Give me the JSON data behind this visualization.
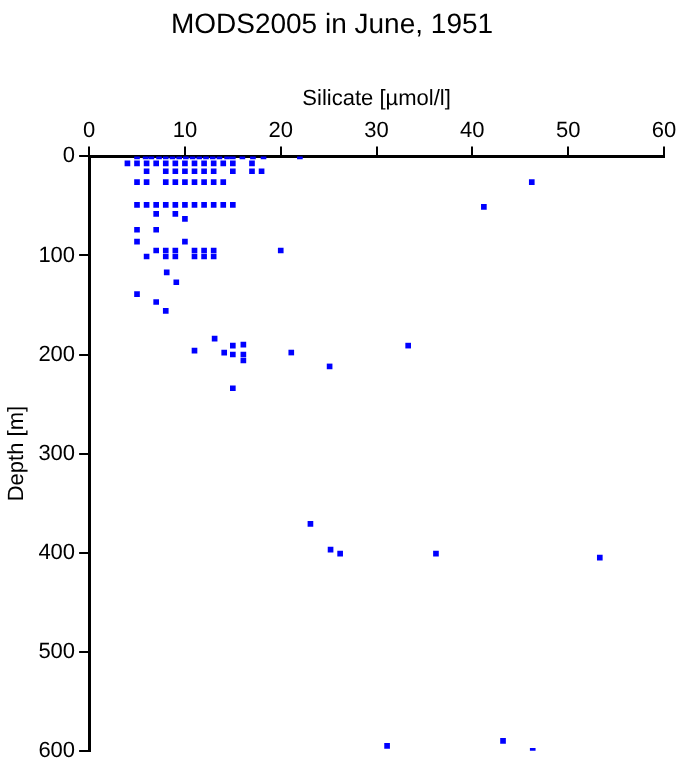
{
  "chart_data": {
    "type": "scatter",
    "title": "MODS2005 in June, 1951",
    "xlabel": "Silicate [µmol/l]",
    "ylabel": "Depth [m]",
    "xlim": [
      0,
      60
    ],
    "xticks": [
      0,
      10,
      20,
      30,
      40,
      50,
      60
    ],
    "ylim": [
      600,
      0
    ],
    "yticks": [
      0,
      100,
      200,
      300,
      400,
      500,
      600
    ],
    "grid": false,
    "legend": false,
    "marker": "square",
    "series": [
      {
        "color": "#0000ff",
        "x": [
          5,
          5.9,
          6.5,
          7.3,
          8,
          8.7,
          9.4,
          10.1,
          10.8,
          11.5,
          12.2,
          12.9,
          13.6,
          14.4,
          15,
          16,
          17.1,
          18.2,
          22,
          4,
          5,
          6,
          7,
          8,
          9,
          10,
          11,
          12,
          13,
          14,
          15,
          17,
          6,
          8,
          9,
          10,
          11,
          12,
          13,
          15,
          17,
          18,
          5,
          6,
          8,
          9,
          10,
          11,
          12,
          13,
          14,
          46.2,
          5,
          6,
          7,
          8,
          9,
          10,
          11,
          12,
          13,
          14,
          15,
          41.2,
          7,
          9,
          10,
          5,
          7,
          5,
          10,
          7,
          8,
          9,
          11,
          12,
          13,
          20,
          6,
          8,
          9,
          11,
          12,
          13,
          8.1,
          9.1,
          5,
          7,
          8,
          13.1,
          11,
          14.1,
          15,
          16.1,
          15,
          16.1,
          16.1,
          21.1,
          25.1,
          33.3,
          15,
          23.1,
          25.2,
          26.2,
          36.2,
          53.3,
          31.1,
          43.2,
          46.3
        ],
        "values": [
          0,
          0,
          0,
          0,
          0,
          0,
          0,
          0,
          0,
          0,
          0,
          0,
          0,
          0,
          0,
          0,
          0,
          0,
          0,
          7,
          7,
          7,
          7,
          7,
          7,
          7,
          7,
          7,
          7,
          7,
          7,
          7,
          15,
          15,
          15,
          15,
          15,
          15,
          15,
          15,
          15,
          15,
          26,
          26,
          26,
          26,
          26,
          26,
          26,
          26,
          26,
          26,
          49,
          49,
          49,
          49,
          49,
          49,
          49,
          49,
          49,
          49,
          49,
          51,
          58,
          58,
          63,
          74,
          74,
          86,
          86,
          95,
          95,
          95,
          95,
          95,
          95,
          95,
          101,
          101,
          101,
          101,
          101,
          101,
          117,
          127,
          139,
          147,
          156,
          184,
          196,
          198,
          191,
          190,
          200,
          200,
          206,
          198,
          212,
          191,
          234,
          371,
          397,
          401,
          401,
          405,
          595,
          590,
          600
        ]
      }
    ]
  }
}
